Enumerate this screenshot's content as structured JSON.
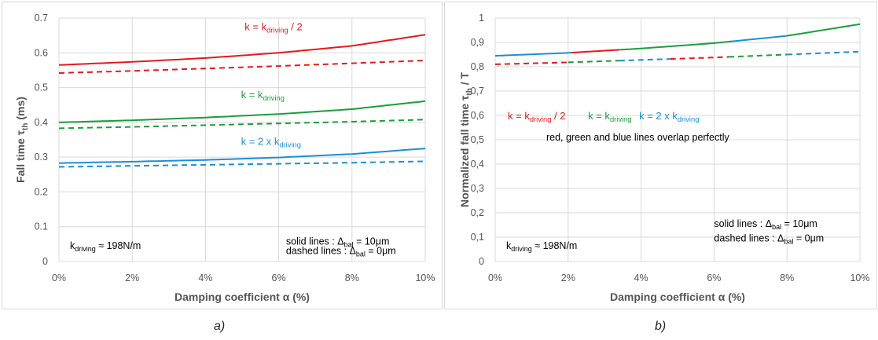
{
  "captions": [
    "a)",
    "b)"
  ],
  "chart_data": [
    {
      "type": "line",
      "ylabel": "Fall time τth (ms)",
      "xlabel": "Damping coefficient α (%)",
      "x": [
        0,
        2,
        4,
        6,
        8,
        10
      ],
      "xticklabels": [
        "0%",
        "2%",
        "4%",
        "6%",
        "8%",
        "10%"
      ],
      "ylim": [
        0,
        0.7
      ],
      "yticklabels": [
        "0",
        "0.1",
        "0.2",
        "0.3",
        "0.4",
        "0.5",
        "0.6",
        "0.7"
      ],
      "grid": true,
      "series": [
        {
          "name": "k = kdriving / 2",
          "color": "#e41a1c",
          "style": "solid",
          "values": [
            0.565,
            0.574,
            0.585,
            0.6,
            0.62,
            0.652
          ]
        },
        {
          "name": "",
          "color": "#e41a1c",
          "style": "dashed",
          "values": [
            0.542,
            0.548,
            0.555,
            0.562,
            0.57,
            0.578
          ]
        },
        {
          "name": "k = kdriving",
          "color": "#1b9e3a",
          "style": "solid",
          "values": [
            0.4,
            0.406,
            0.414,
            0.424,
            0.438,
            0.461
          ]
        },
        {
          "name": "",
          "color": "#1b9e3a",
          "style": "dashed",
          "values": [
            0.383,
            0.387,
            0.392,
            0.397,
            0.402,
            0.408
          ]
        },
        {
          "name": "k = 2 x kdriving",
          "color": "#1a8fd6",
          "style": "solid",
          "values": [
            0.283,
            0.287,
            0.292,
            0.299,
            0.309,
            0.325
          ]
        },
        {
          "name": "",
          "color": "#1a8fd6",
          "style": "dashed",
          "values": [
            0.272,
            0.275,
            0.278,
            0.281,
            0.284,
            0.288
          ]
        }
      ],
      "labels": [
        {
          "series": 0,
          "main": "k = k",
          "sub": "driving",
          "tail": " / 2",
          "x": 6.1,
          "y": 0.665
        },
        {
          "series": 2,
          "main": "k = k",
          "sub": "driving",
          "tail": "",
          "x": 6.0,
          "y": 0.47
        },
        {
          "series": 4,
          "main": "k = 2 x k",
          "sub": "driving",
          "tail": "",
          "x": 6.0,
          "y": 0.335
        }
      ],
      "kdriving_note": {
        "main": "k",
        "sub": "driving",
        "tail": " ≈ 198N/m"
      },
      "legend": {
        "solid_label": "solid lines",
        "solid_value": " : Δbal = 10μm",
        "dashed_label": "dashed lines",
        "dashed_value": " :  Δbal = 0μm"
      }
    },
    {
      "type": "line",
      "ylabel": "Normalized fall time τth / T",
      "xlabel": "Damping coefficient α (%)",
      "x": [
        0,
        2,
        4,
        6,
        8,
        10
      ],
      "xticklabels": [
        "0%",
        "2%",
        "4%",
        "6%",
        "8%",
        "10%"
      ],
      "ylim": [
        0,
        1
      ],
      "yticklabels": [
        "0",
        "0,1",
        "0,2",
        "0,3",
        "0,4",
        "0,5",
        "0,6",
        "0,7",
        "0,8",
        "0,9",
        "1"
      ],
      "grid": true,
      "series": [
        {
          "name": "",
          "style": "solid",
          "values": [
            0.845,
            0.857,
            0.875,
            0.897,
            0.927,
            0.975
          ]
        },
        {
          "name": "",
          "style": "dashed",
          "values": [
            0.81,
            0.818,
            0.828,
            0.838,
            0.85,
            0.862
          ]
        }
      ],
      "segment_colors": [
        {
          "to": 2.1,
          "color": "#1a8fd6"
        },
        {
          "to": 3.4,
          "color": "#e41a1c"
        },
        {
          "to": 6.5,
          "color": "#1b9e3a"
        },
        {
          "to": 8.0,
          "color": "#1a8fd6"
        },
        {
          "to": 10.0,
          "color": "#1b9e3a"
        }
      ],
      "dashed_segment_colors": [
        {
          "to": 2.0,
          "color": "#e41a1c"
        },
        {
          "to": 3.4,
          "color": "#1b9e3a"
        },
        {
          "to": 4.8,
          "color": "#1a8fd6"
        },
        {
          "to": 6.4,
          "color": "#e41a1c"
        },
        {
          "to": 8.0,
          "color": "#1b9e3a"
        },
        {
          "to": 10.0,
          "color": "#1a8fd6"
        }
      ],
      "key": [
        {
          "main": "k = k",
          "sub": "driving",
          "tail": " / 2",
          "color": "#e41a1c"
        },
        {
          "main": "k = k",
          "sub": "driving",
          "tail": "",
          "color": "#1b9e3a"
        },
        {
          "main": "k = 2 x k",
          "sub": "driving",
          "tail": "",
          "color": "#1a8fd6"
        }
      ],
      "overlap_note": "red, green and blue lines overlap perfectly",
      "kdriving_note": {
        "main": "k",
        "sub": "driving",
        "tail": " ≈ 198N/m"
      },
      "legend": {
        "solid_label": "solid lines",
        "solid_value": " : Δbal = 10μm",
        "dashed_label": "dashed lines",
        "dashed_value": " :  Δbal = 0μm"
      }
    }
  ]
}
